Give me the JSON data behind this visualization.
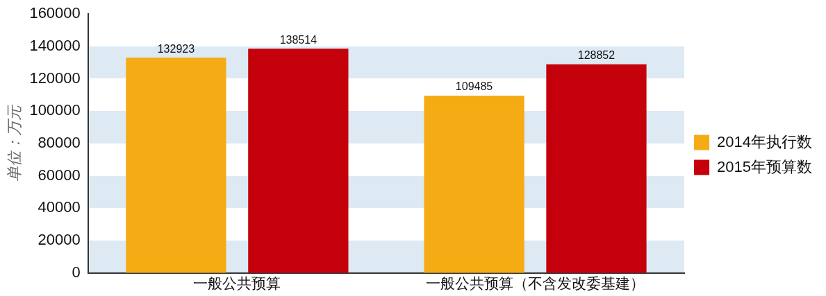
{
  "chart_data": {
    "type": "bar",
    "ylabel": "单位：万元",
    "categories": [
      "一般公共预算",
      "一般公共预算（不含发改委基建）"
    ],
    "series": [
      {
        "name": "2014年执行数",
        "color": "#f5ac14",
        "values": [
          132923,
          109485
        ]
      },
      {
        "name": "2015年预算数",
        "color": "#c4000b",
        "values": [
          138514,
          128852
        ]
      }
    ],
    "ylim": [
      0,
      160000
    ],
    "yticks": [
      0,
      20000,
      40000,
      60000,
      80000,
      100000,
      120000,
      140000,
      160000
    ],
    "grid": false,
    "legend": "right",
    "data_labels": true
  }
}
